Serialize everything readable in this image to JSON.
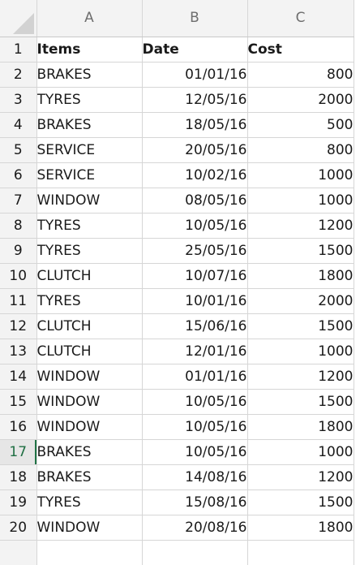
{
  "columns": {
    "headers": [
      "A",
      "B",
      "C"
    ]
  },
  "header_row": {
    "row_number": "1",
    "cells": [
      "Items",
      "Date",
      "Cost"
    ]
  },
  "active_row": "17",
  "rows": [
    {
      "row_number": "2",
      "items": "BRAKES",
      "date": "01/01/16",
      "cost": "800"
    },
    {
      "row_number": "3",
      "items": "TYRES",
      "date": "12/05/16",
      "cost": "2000"
    },
    {
      "row_number": "4",
      "items": "BRAKES",
      "date": "18/05/16",
      "cost": "500"
    },
    {
      "row_number": "5",
      "items": "SERVICE",
      "date": "20/05/16",
      "cost": "800"
    },
    {
      "row_number": "6",
      "items": "SERVICE",
      "date": "10/02/16",
      "cost": "1000"
    },
    {
      "row_number": "7",
      "items": "WINDOW",
      "date": "08/05/16",
      "cost": "1000"
    },
    {
      "row_number": "8",
      "items": "TYRES",
      "date": "10/05/16",
      "cost": "1200"
    },
    {
      "row_number": "9",
      "items": "TYRES",
      "date": "25/05/16",
      "cost": "1500"
    },
    {
      "row_number": "10",
      "items": "CLUTCH",
      "date": "10/07/16",
      "cost": "1800"
    },
    {
      "row_number": "11",
      "items": "TYRES",
      "date": "10/01/16",
      "cost": "2000"
    },
    {
      "row_number": "12",
      "items": "CLUTCH",
      "date": "15/06/16",
      "cost": "1500"
    },
    {
      "row_number": "13",
      "items": "CLUTCH",
      "date": "12/01/16",
      "cost": "1000"
    },
    {
      "row_number": "14",
      "items": "WINDOW",
      "date": "01/01/16",
      "cost": "1200"
    },
    {
      "row_number": "15",
      "items": "WINDOW",
      "date": "10/05/16",
      "cost": "1500"
    },
    {
      "row_number": "16",
      "items": "WINDOW",
      "date": "10/05/16",
      "cost": "1800"
    },
    {
      "row_number": "17",
      "items": "BRAKES",
      "date": "10/05/16",
      "cost": "1000"
    },
    {
      "row_number": "18",
      "items": "BRAKES",
      "date": "14/08/16",
      "cost": "1200"
    },
    {
      "row_number": "19",
      "items": "TYRES",
      "date": "15/08/16",
      "cost": "1500"
    },
    {
      "row_number": "20",
      "items": "WINDOW",
      "date": "20/08/16",
      "cost": "1800"
    },
    {
      "row_number": "",
      "items": "",
      "date": "",
      "cost": ""
    }
  ],
  "colors": {
    "header_bg": "#f3f3f3",
    "gridline": "#d6d6d6",
    "active_row_accent": "#217346"
  }
}
